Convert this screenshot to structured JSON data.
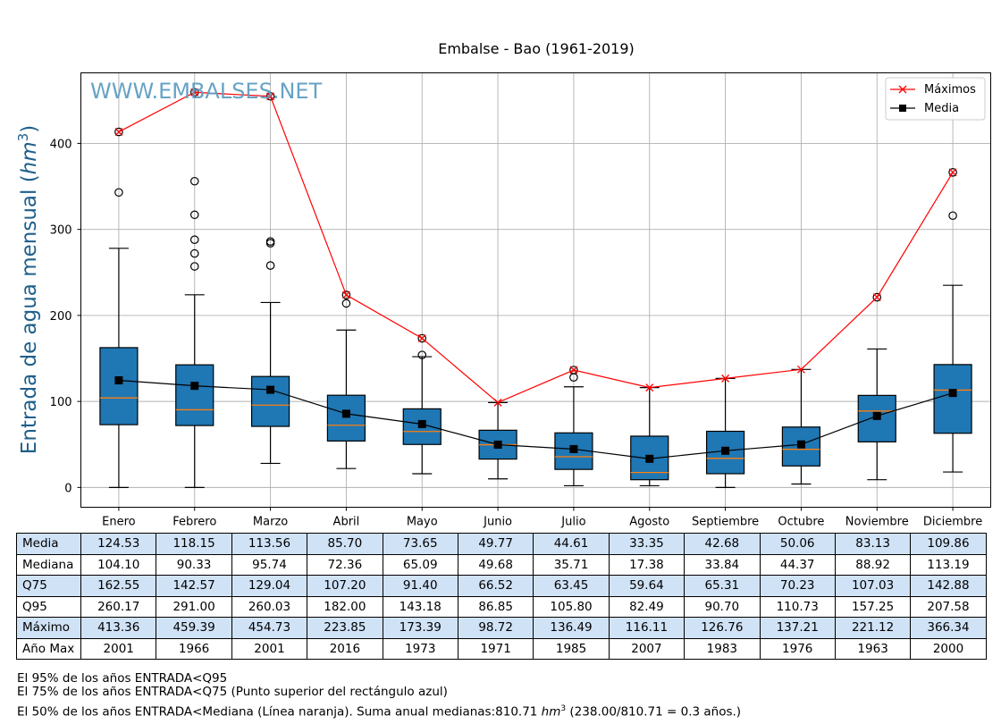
{
  "chart_data": {
    "type": "box",
    "title": "Embalse - Bao (1961-2019)",
    "watermark": "WWW.EMBALSES.NET",
    "ylabel": "Entrada de agua mensual (hm³)",
    "ylabel_main": "Entrada de agua mensual (",
    "ylabel_unit": "hm",
    "ylabel_sup": "3",
    "ylabel_close": ")",
    "xlabel": "",
    "ylim": [
      -23,
      482
    ],
    "yticks": [
      0,
      100,
      200,
      300,
      400
    ],
    "grid": true,
    "legend_position": "top-right",
    "legend": [
      {
        "name": "Máximos",
        "color": "#ff0000",
        "marker": "x"
      },
      {
        "name": "Media",
        "color": "#000000",
        "marker": "square"
      }
    ],
    "categories": [
      "Enero",
      "Febrero",
      "Marzo",
      "Abril",
      "Mayo",
      "Junio",
      "Julio",
      "Agosto",
      "Septiembre",
      "Octubre",
      "Noviembre",
      "Diciembre"
    ],
    "boxes": [
      {
        "q1": 73,
        "median": 104.1,
        "q3": 162.55,
        "whisker_low": 0,
        "whisker_high": 278,
        "outliers": [
          343,
          413.36
        ]
      },
      {
        "q1": 72,
        "median": 90.33,
        "q3": 142.57,
        "whisker_low": 0,
        "whisker_high": 224,
        "outliers": [
          257,
          272,
          288,
          317,
          356,
          459.39
        ]
      },
      {
        "q1": 71,
        "median": 95.74,
        "q3": 129.04,
        "whisker_low": 28,
        "whisker_high": 215,
        "outliers": [
          258,
          284,
          286,
          454.73
        ]
      },
      {
        "q1": 54,
        "median": 72.36,
        "q3": 107.2,
        "whisker_low": 22,
        "whisker_high": 183,
        "outliers": [
          214,
          223.85
        ]
      },
      {
        "q1": 50,
        "median": 65.09,
        "q3": 91.4,
        "whisker_low": 16,
        "whisker_high": 152,
        "outliers": [
          154,
          173.39
        ]
      },
      {
        "q1": 33,
        "median": 49.68,
        "q3": 66.52,
        "whisker_low": 10,
        "whisker_high": 98.72,
        "outliers": []
      },
      {
        "q1": 21,
        "median": 35.71,
        "q3": 63.45,
        "whisker_low": 2,
        "whisker_high": 117,
        "outliers": [
          128,
          136.49
        ]
      },
      {
        "q1": 9,
        "median": 17.38,
        "q3": 59.64,
        "whisker_low": 2,
        "whisker_high": 116.11,
        "outliers": []
      },
      {
        "q1": 16,
        "median": 33.84,
        "q3": 65.31,
        "whisker_low": 0,
        "whisker_high": 126.76,
        "outliers": []
      },
      {
        "q1": 25,
        "median": 44.37,
        "q3": 70.23,
        "whisker_low": 4,
        "whisker_high": 137.21,
        "outliers": []
      },
      {
        "q1": 53,
        "median": 88.92,
        "q3": 107.03,
        "whisker_low": 9,
        "whisker_high": 161,
        "outliers": [
          221.12
        ]
      },
      {
        "q1": 63,
        "median": 113.19,
        "q3": 142.88,
        "whisker_low": 18,
        "whisker_high": 235,
        "outliers": [
          316,
          366.34
        ]
      }
    ],
    "series": [
      {
        "name": "Máximos",
        "values": [
          413.36,
          459.39,
          454.73,
          223.85,
          173.39,
          98.72,
          136.49,
          116.11,
          126.76,
          137.21,
          221.12,
          366.34
        ]
      },
      {
        "name": "Media",
        "values": [
          124.53,
          118.15,
          113.56,
          85.7,
          73.65,
          49.77,
          44.61,
          33.35,
          42.68,
          50.06,
          83.13,
          109.86
        ]
      }
    ],
    "colors": {
      "box": "#1f77b4",
      "median": "#ff7f0e",
      "max_line": "#ff0000",
      "mean_line": "#000000",
      "grid": "#b0b0b0",
      "ylabel": "#1f5f8b",
      "watermark": "#5f9ec3"
    }
  },
  "table": {
    "columns": [
      "Enero",
      "Febrero",
      "Marzo",
      "Abril",
      "Mayo",
      "Junio",
      "Julio",
      "Agosto",
      "Septiembre",
      "Octubre",
      "Noviembre",
      "Diciembre"
    ],
    "rows": [
      {
        "label": "Media",
        "values": [
          "124.53",
          "118.15",
          "113.56",
          "85.70",
          "73.65",
          "49.77",
          "44.61",
          "33.35",
          "42.68",
          "50.06",
          "83.13",
          "109.86"
        ]
      },
      {
        "label": "Mediana",
        "values": [
          "104.10",
          "90.33",
          "95.74",
          "72.36",
          "65.09",
          "49.68",
          "35.71",
          "17.38",
          "33.84",
          "44.37",
          "88.92",
          "113.19"
        ]
      },
      {
        "label": "Q75",
        "values": [
          "162.55",
          "142.57",
          "129.04",
          "107.20",
          "91.40",
          "66.52",
          "63.45",
          "59.64",
          "65.31",
          "70.23",
          "107.03",
          "142.88"
        ]
      },
      {
        "label": "Q95",
        "values": [
          "260.17",
          "291.00",
          "260.03",
          "182.00",
          "143.18",
          "86.85",
          "105.80",
          "82.49",
          "90.70",
          "110.73",
          "157.25",
          "207.58"
        ]
      },
      {
        "label": "Máximo",
        "values": [
          "413.36",
          "459.39",
          "454.73",
          "223.85",
          "173.39",
          "98.72",
          "136.49",
          "116.11",
          "126.76",
          "137.21",
          "221.12",
          "366.34"
        ]
      },
      {
        "label": "Año Max",
        "values": [
          "2001",
          "1966",
          "2001",
          "2016",
          "1973",
          "1971",
          "1985",
          "2007",
          "1983",
          "1976",
          "1963",
          "2000"
        ]
      }
    ]
  },
  "notes": {
    "line1": "El 95% de los años ENTRADA<Q95",
    "line2": "El 75% de los años ENTRADA<Q75 (Punto superior del rectángulo azul)",
    "line3_pre": "El 50% de los años ENTRADA<Mediana (Línea naranja). Suma anual medianas:810.71 ",
    "line3_unit": "hm",
    "line3_sup": "3",
    "line3_post": " (238.00/810.71 = 0.3 años.)"
  }
}
